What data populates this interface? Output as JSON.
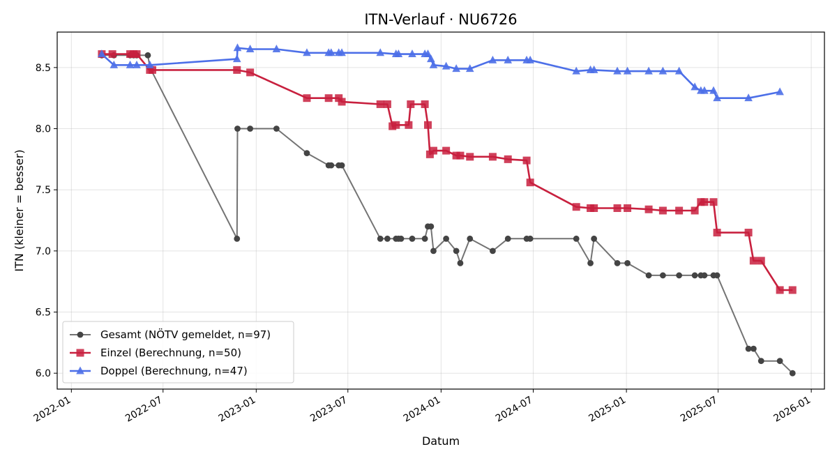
{
  "chart_data": {
    "type": "line",
    "title": "ITN-Verlauf · NU6726",
    "xlabel": "Datum",
    "ylabel": "ITN  (kleiner = besser)",
    "xlim": [
      "2021-12-04",
      "2026-01-27"
    ],
    "ylim": [
      5.87,
      8.79
    ],
    "x_ticks": [
      "2022-01",
      "2022-07",
      "2023-01",
      "2023-07",
      "2024-01",
      "2024-07",
      "2025-01",
      "2025-07",
      "2026-01"
    ],
    "y_ticks": [
      "6.0",
      "6.5",
      "7.0",
      "7.5",
      "8.0",
      "8.5"
    ],
    "grid": true,
    "legend_position": "lower-left",
    "series": [
      {
        "name": "Gesamt (NÖTV gemeldet, n=97)",
        "color": "#444444",
        "marker": "circle",
        "points": [
          [
            "2022-03-02",
            8.6
          ],
          [
            "2022-03-26",
            8.6
          ],
          [
            "2022-04-27",
            8.6
          ],
          [
            "2022-05-04",
            8.6
          ],
          [
            "2022-05-10",
            8.6
          ],
          [
            "2022-06-01",
            8.6
          ],
          [
            "2022-06-05",
            8.5
          ],
          [
            "2022-11-24",
            7.1
          ],
          [
            "2022-11-25",
            8.0
          ],
          [
            "2022-12-20",
            8.0
          ],
          [
            "2023-02-10",
            8.0
          ],
          [
            "2023-04-11",
            7.8
          ],
          [
            "2023-05-24",
            7.7
          ],
          [
            "2023-05-29",
            7.7
          ],
          [
            "2023-06-13",
            7.7
          ],
          [
            "2023-06-19",
            7.7
          ],
          [
            "2023-09-03",
            7.1
          ],
          [
            "2023-09-17",
            7.1
          ],
          [
            "2023-10-04",
            7.1
          ],
          [
            "2023-10-09",
            7.1
          ],
          [
            "2023-10-14",
            7.1
          ],
          [
            "2023-11-05",
            7.1
          ],
          [
            "2023-11-30",
            7.1
          ],
          [
            "2023-12-06",
            7.2
          ],
          [
            "2023-12-12",
            7.2
          ],
          [
            "2023-12-17",
            7.0
          ],
          [
            "2024-01-11",
            7.1
          ],
          [
            "2024-01-31",
            7.0
          ],
          [
            "2024-02-08",
            6.9
          ],
          [
            "2024-02-27",
            7.1
          ],
          [
            "2024-04-12",
            7.0
          ],
          [
            "2024-05-12",
            7.1
          ],
          [
            "2024-06-18",
            7.1
          ],
          [
            "2024-06-25",
            7.1
          ],
          [
            "2024-09-24",
            7.1
          ],
          [
            "2024-10-22",
            6.9
          ],
          [
            "2024-10-29",
            7.1
          ],
          [
            "2024-12-14",
            6.9
          ],
          [
            "2025-01-03",
            6.9
          ],
          [
            "2025-02-14",
            6.8
          ],
          [
            "2025-03-14",
            6.8
          ],
          [
            "2025-04-15",
            6.8
          ],
          [
            "2025-05-16",
            6.8
          ],
          [
            "2025-05-28",
            6.8
          ],
          [
            "2025-06-04",
            6.8
          ],
          [
            "2025-06-22",
            6.8
          ],
          [
            "2025-06-29",
            6.8
          ],
          [
            "2025-08-30",
            6.2
          ],
          [
            "2025-09-09",
            6.2
          ],
          [
            "2025-09-24",
            6.1
          ],
          [
            "2025-10-31",
            6.1
          ],
          [
            "2025-11-25",
            6.0
          ]
        ]
      },
      {
        "name": "Einzel (Berechnung, n=50)",
        "color": "#c8203e",
        "marker": "square",
        "points": [
          [
            "2022-03-02",
            8.61
          ],
          [
            "2022-03-23",
            8.61
          ],
          [
            "2022-04-27",
            8.61
          ],
          [
            "2022-05-04",
            8.61
          ],
          [
            "2022-05-10",
            8.61
          ],
          [
            "2022-06-05",
            8.48
          ],
          [
            "2022-06-10",
            8.48
          ],
          [
            "2022-11-24",
            8.48
          ],
          [
            "2022-12-20",
            8.46
          ],
          [
            "2023-04-11",
            8.25
          ],
          [
            "2023-05-24",
            8.25
          ],
          [
            "2023-06-13",
            8.25
          ],
          [
            "2023-06-19",
            8.22
          ],
          [
            "2023-09-03",
            8.2
          ],
          [
            "2023-09-17",
            8.2
          ],
          [
            "2023-09-27",
            8.02
          ],
          [
            "2023-10-04",
            8.03
          ],
          [
            "2023-10-29",
            8.03
          ],
          [
            "2023-11-02",
            8.2
          ],
          [
            "2023-11-30",
            8.2
          ],
          [
            "2023-12-06",
            8.03
          ],
          [
            "2023-12-10",
            7.79
          ],
          [
            "2023-12-17",
            7.82
          ],
          [
            "2024-01-11",
            7.82
          ],
          [
            "2024-01-31",
            7.78
          ],
          [
            "2024-02-08",
            7.78
          ],
          [
            "2024-02-27",
            7.77
          ],
          [
            "2024-04-12",
            7.77
          ],
          [
            "2024-05-12",
            7.75
          ],
          [
            "2024-06-18",
            7.74
          ],
          [
            "2024-06-25",
            7.56
          ],
          [
            "2024-09-24",
            7.36
          ],
          [
            "2024-10-22",
            7.35
          ],
          [
            "2024-10-29",
            7.35
          ],
          [
            "2024-12-14",
            7.35
          ],
          [
            "2025-01-03",
            7.35
          ],
          [
            "2025-02-14",
            7.34
          ],
          [
            "2025-03-14",
            7.33
          ],
          [
            "2025-04-15",
            7.33
          ],
          [
            "2025-05-16",
            7.33
          ],
          [
            "2025-05-28",
            7.4
          ],
          [
            "2025-06-04",
            7.4
          ],
          [
            "2025-06-22",
            7.4
          ],
          [
            "2025-06-29",
            7.15
          ],
          [
            "2025-08-30",
            7.15
          ],
          [
            "2025-09-09",
            6.92
          ],
          [
            "2025-09-24",
            6.92
          ],
          [
            "2025-10-31",
            6.68
          ],
          [
            "2025-11-25",
            6.68
          ]
        ]
      },
      {
        "name": "Doppel (Berechnung, n=47)",
        "color": "#4c6fe8",
        "marker": "triangle",
        "points": [
          [
            "2022-03-02",
            8.61
          ],
          [
            "2022-03-26",
            8.52
          ],
          [
            "2022-04-27",
            8.52
          ],
          [
            "2022-05-10",
            8.52
          ],
          [
            "2022-06-05",
            8.52
          ],
          [
            "2022-11-24",
            8.57
          ],
          [
            "2022-11-25",
            8.66
          ],
          [
            "2022-12-20",
            8.65
          ],
          [
            "2023-02-10",
            8.65
          ],
          [
            "2023-04-11",
            8.62
          ],
          [
            "2023-05-24",
            8.62
          ],
          [
            "2023-05-29",
            8.62
          ],
          [
            "2023-06-13",
            8.62
          ],
          [
            "2023-06-19",
            8.62
          ],
          [
            "2023-09-03",
            8.62
          ],
          [
            "2023-10-04",
            8.61
          ],
          [
            "2023-10-09",
            8.61
          ],
          [
            "2023-11-05",
            8.61
          ],
          [
            "2023-11-30",
            8.61
          ],
          [
            "2023-12-06",
            8.61
          ],
          [
            "2023-12-12",
            8.57
          ],
          [
            "2023-12-17",
            8.52
          ],
          [
            "2024-01-11",
            8.51
          ],
          [
            "2024-01-31",
            8.49
          ],
          [
            "2024-02-27",
            8.49
          ],
          [
            "2024-04-12",
            8.56
          ],
          [
            "2024-05-12",
            8.56
          ],
          [
            "2024-06-18",
            8.56
          ],
          [
            "2024-06-25",
            8.56
          ],
          [
            "2024-09-24",
            8.47
          ],
          [
            "2024-10-22",
            8.48
          ],
          [
            "2024-10-29",
            8.48
          ],
          [
            "2024-12-14",
            8.47
          ],
          [
            "2025-01-03",
            8.47
          ],
          [
            "2025-02-14",
            8.47
          ],
          [
            "2025-03-14",
            8.47
          ],
          [
            "2025-04-15",
            8.47
          ],
          [
            "2025-05-16",
            8.34
          ],
          [
            "2025-05-28",
            8.31
          ],
          [
            "2025-06-04",
            8.31
          ],
          [
            "2025-06-22",
            8.31
          ],
          [
            "2025-06-29",
            8.25
          ],
          [
            "2025-08-30",
            8.25
          ],
          [
            "2025-10-31",
            8.3
          ]
        ]
      }
    ]
  }
}
